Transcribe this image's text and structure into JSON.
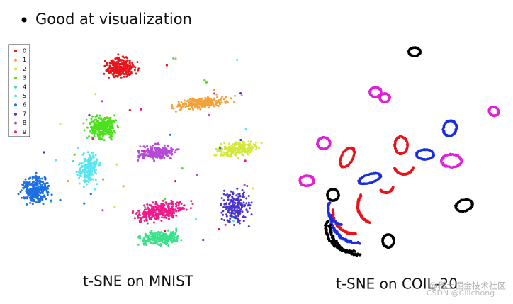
{
  "bullet": "Good at visualization",
  "panels": [
    {
      "caption": "t-SNE on MNIST",
      "legend": [
        {
          "label": "0",
          "color": "#e8141a"
        },
        {
          "label": "1",
          "color": "#f2a23a"
        },
        {
          "label": "2",
          "color": "#d3e83a"
        },
        {
          "label": "3",
          "color": "#4de01e"
        },
        {
          "label": "4",
          "color": "#3be08a"
        },
        {
          "label": "5",
          "color": "#5ae6f0"
        },
        {
          "label": "6",
          "color": "#1e6fe0"
        },
        {
          "label": "7",
          "color": "#4a35cf"
        },
        {
          "label": "8",
          "color": "#b54ad6"
        },
        {
          "label": "9",
          "color": "#ee1c8a"
        }
      ]
    },
    {
      "caption": "t-SNE on COIL-20"
    }
  ],
  "watermark": [
    "CSDN @Cilichong",
    "@稀土掘金技术社区"
  ]
}
